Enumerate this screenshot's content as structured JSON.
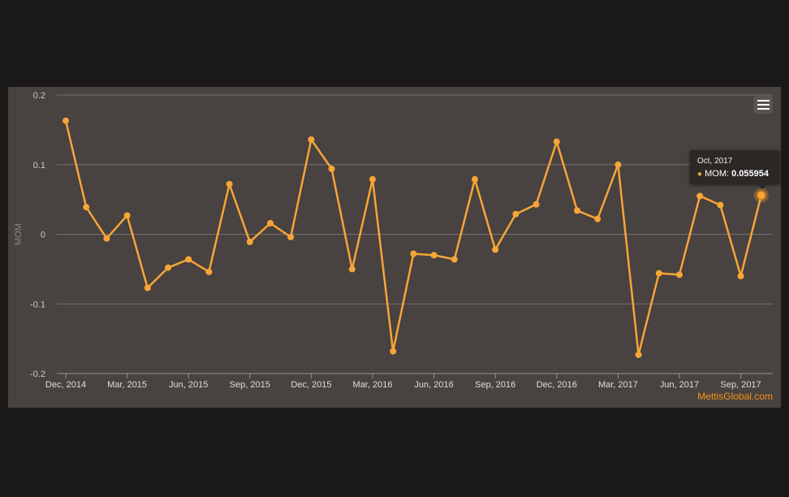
{
  "chart_data": {
    "type": "line",
    "title": "",
    "ylabel": "MOM",
    "xlabel": "",
    "ylim": [
      -0.2,
      0.2
    ],
    "y_ticks": [
      {
        "value": 0.2,
        "label": "0.2"
      },
      {
        "value": 0.1,
        "label": "0.1"
      },
      {
        "value": 0,
        "label": "0"
      },
      {
        "value": -0.1,
        "label": "-0.1"
      },
      {
        "value": -0.2,
        "label": "-0.2"
      }
    ],
    "x_ticks": [
      {
        "index": 0,
        "label": "Dec, 2014"
      },
      {
        "index": 3,
        "label": "Mar, 2015"
      },
      {
        "index": 6,
        "label": "Jun, 2015"
      },
      {
        "index": 9,
        "label": "Sep, 2015"
      },
      {
        "index": 12,
        "label": "Dec, 2015"
      },
      {
        "index": 15,
        "label": "Mar, 2016"
      },
      {
        "index": 18,
        "label": "Jun, 2016"
      },
      {
        "index": 21,
        "label": "Sep, 2016"
      },
      {
        "index": 24,
        "label": "Dec, 2016"
      },
      {
        "index": 27,
        "label": "Mar, 2017"
      },
      {
        "index": 30,
        "label": "Jun, 2017"
      },
      {
        "index": 33,
        "label": "Sep, 2017"
      }
    ],
    "x": [
      "Dec, 2014",
      "Jan, 2015",
      "Feb, 2015",
      "Mar, 2015",
      "Apr, 2015",
      "May, 2015",
      "Jun, 2015",
      "Jul, 2015",
      "Aug, 2015",
      "Sep, 2015",
      "Oct, 2015",
      "Nov, 2015",
      "Dec, 2015",
      "Jan, 2016",
      "Feb, 2016",
      "Mar, 2016",
      "Apr, 2016",
      "May, 2016",
      "Jun, 2016",
      "Jul, 2016",
      "Aug, 2016",
      "Sep, 2016",
      "Oct, 2016",
      "Nov, 2016",
      "Dec, 2016",
      "Jan, 2017",
      "Feb, 2017",
      "Mar, 2017",
      "Apr, 2017",
      "May, 2017",
      "Jun, 2017",
      "Jul, 2017",
      "Aug, 2017",
      "Sep, 2017",
      "Oct, 2017"
    ],
    "series": [
      {
        "name": "MOM",
        "color": "#f7a536",
        "values": [
          0.163,
          0.039,
          -0.006,
          0.027,
          -0.077,
          -0.048,
          -0.036,
          -0.054,
          0.072,
          -0.011,
          0.016,
          -0.004,
          0.136,
          0.094,
          -0.05,
          0.079,
          -0.168,
          -0.028,
          -0.03,
          -0.036,
          0.079,
          -0.022,
          0.029,
          0.043,
          0.133,
          0.034,
          0.022,
          0.1,
          -0.173,
          -0.056,
          -0.058,
          0.055,
          0.042,
          -0.06,
          0.055954
        ]
      }
    ],
    "grid": true,
    "legend": "none",
    "highlight_index": 34
  },
  "tooltip": {
    "date": "Oct, 2017",
    "series_label": "MOM:",
    "value": "0.055954",
    "bullet": "●"
  },
  "credit": "MettisGlobal.com",
  "colors": {
    "background": "#1c1a19",
    "panel": "#484240",
    "line": "#f7a536",
    "credit": "#f7941d"
  }
}
